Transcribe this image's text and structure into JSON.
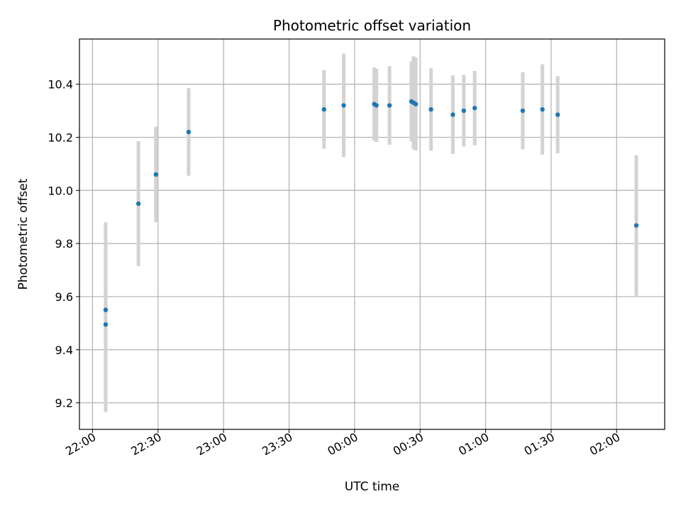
{
  "chart_data": {
    "type": "scatter",
    "title": "Photometric offset variation",
    "xlabel": "UTC time",
    "ylabel": "Photometric offset",
    "x_axis": {
      "ticks": [
        {
          "minutes": 0,
          "label": "22:00"
        },
        {
          "minutes": 30,
          "label": "22:30"
        },
        {
          "minutes": 60,
          "label": "23:00"
        },
        {
          "minutes": 90,
          "label": "23:30"
        },
        {
          "minutes": 120,
          "label": "00:00"
        },
        {
          "minutes": 150,
          "label": "00:30"
        },
        {
          "minutes": 180,
          "label": "01:00"
        },
        {
          "minutes": 210,
          "label": "01:30"
        },
        {
          "minutes": 240,
          "label": "02:00"
        }
      ],
      "range_minutes": [
        -6,
        262
      ]
    },
    "y_axis": {
      "ticks": [
        9.2,
        9.4,
        9.6,
        9.8,
        10.0,
        10.2,
        10.4
      ],
      "tick_labels": [
        "9.2",
        "9.4",
        "9.6",
        "9.8",
        "10.0",
        "10.2",
        "10.4"
      ],
      "ylim": [
        9.1,
        10.57
      ]
    },
    "grid": true,
    "point_color": "#1f77b4",
    "errorbar_color": "#d3d3d3",
    "series": [
      {
        "points": [
          {
            "time": "22:06",
            "y": 9.55,
            "err": 0.33
          },
          {
            "time": "22:06",
            "y": 9.495,
            "err": 0.33
          },
          {
            "time": "22:21",
            "y": 9.95,
            "err": 0.235
          },
          {
            "time": "22:29",
            "y": 10.06,
            "err": 0.18
          },
          {
            "time": "22:44",
            "y": 10.22,
            "err": 0.165
          },
          {
            "time": "23:46",
            "y": 10.305,
            "err": 0.148
          },
          {
            "time": "23:55",
            "y": 10.32,
            "err": 0.195
          },
          {
            "time": "00:09",
            "y": 10.325,
            "err": 0.138
          },
          {
            "time": "00:10",
            "y": 10.32,
            "err": 0.138
          },
          {
            "time": "00:16",
            "y": 10.32,
            "err": 0.148
          },
          {
            "time": "00:26",
            "y": 10.335,
            "err": 0.15
          },
          {
            "time": "00:27",
            "y": 10.33,
            "err": 0.175
          },
          {
            "time": "00:28",
            "y": 10.325,
            "err": 0.175
          },
          {
            "time": "00:35",
            "y": 10.305,
            "err": 0.155
          },
          {
            "time": "00:45",
            "y": 10.285,
            "err": 0.148
          },
          {
            "time": "00:50",
            "y": 10.3,
            "err": 0.135
          },
          {
            "time": "00:55",
            "y": 10.31,
            "err": 0.14
          },
          {
            "time": "01:17",
            "y": 10.3,
            "err": 0.145
          },
          {
            "time": "01:26",
            "y": 10.305,
            "err": 0.17
          },
          {
            "time": "01:33",
            "y": 10.285,
            "err": 0.145
          },
          {
            "time": "02:09",
            "y": 9.868,
            "err": 0.265
          }
        ]
      }
    ]
  }
}
